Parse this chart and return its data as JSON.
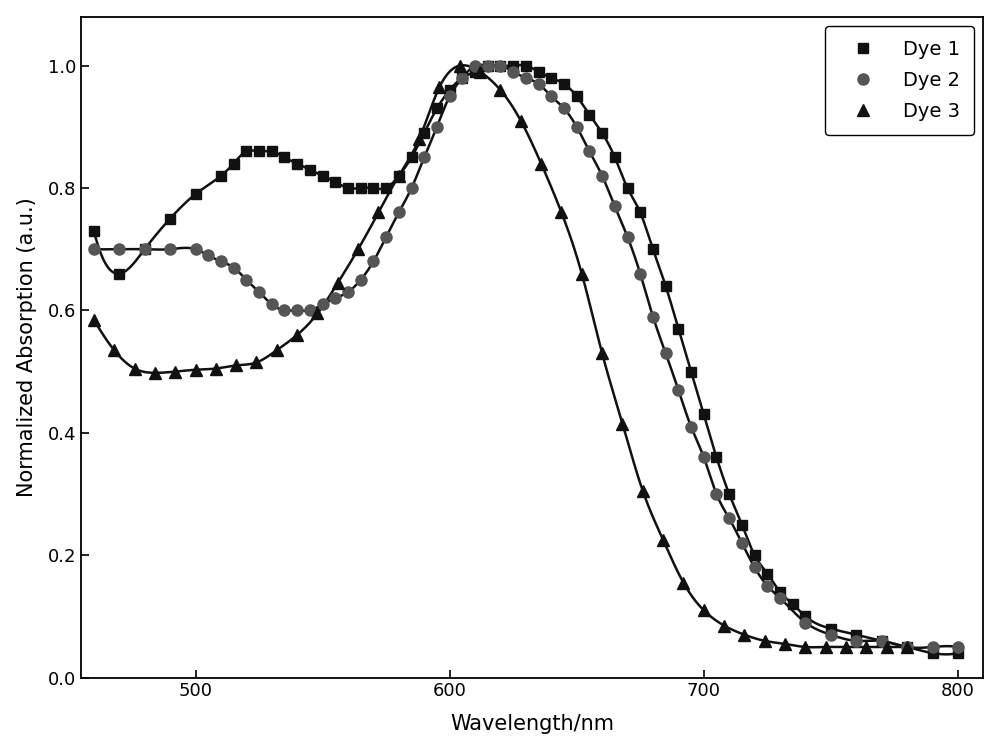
{
  "dye1_x": [
    460,
    470,
    480,
    490,
    500,
    510,
    515,
    520,
    525,
    530,
    535,
    540,
    545,
    550,
    555,
    560,
    565,
    570,
    575,
    580,
    585,
    590,
    595,
    600,
    605,
    610,
    615,
    620,
    625,
    630,
    635,
    640,
    645,
    650,
    655,
    660,
    665,
    670,
    675,
    680,
    685,
    690,
    695,
    700,
    705,
    710,
    715,
    720,
    725,
    730,
    735,
    740,
    750,
    760,
    770,
    780,
    790,
    800
  ],
  "dye1_y": [
    0.73,
    0.66,
    0.7,
    0.75,
    0.79,
    0.82,
    0.84,
    0.86,
    0.86,
    0.86,
    0.85,
    0.84,
    0.83,
    0.82,
    0.81,
    0.8,
    0.8,
    0.8,
    0.8,
    0.82,
    0.85,
    0.89,
    0.93,
    0.96,
    0.98,
    0.99,
    1.0,
    1.0,
    1.0,
    1.0,
    0.99,
    0.98,
    0.97,
    0.95,
    0.92,
    0.89,
    0.85,
    0.8,
    0.76,
    0.7,
    0.64,
    0.57,
    0.5,
    0.43,
    0.36,
    0.3,
    0.25,
    0.2,
    0.17,
    0.14,
    0.12,
    0.1,
    0.08,
    0.07,
    0.06,
    0.05,
    0.04,
    0.04
  ],
  "dye2_x": [
    460,
    470,
    480,
    490,
    500,
    505,
    510,
    515,
    520,
    525,
    530,
    535,
    540,
    545,
    550,
    555,
    560,
    565,
    570,
    575,
    580,
    585,
    590,
    595,
    600,
    605,
    610,
    615,
    620,
    625,
    630,
    635,
    640,
    645,
    650,
    655,
    660,
    665,
    670,
    675,
    680,
    685,
    690,
    695,
    700,
    705,
    710,
    715,
    720,
    725,
    730,
    740,
    750,
    760,
    770,
    780,
    790,
    800
  ],
  "dye2_y": [
    0.7,
    0.7,
    0.7,
    0.7,
    0.7,
    0.69,
    0.68,
    0.67,
    0.65,
    0.63,
    0.61,
    0.6,
    0.6,
    0.6,
    0.61,
    0.62,
    0.63,
    0.65,
    0.68,
    0.72,
    0.76,
    0.8,
    0.85,
    0.9,
    0.95,
    0.98,
    1.0,
    1.0,
    1.0,
    0.99,
    0.98,
    0.97,
    0.95,
    0.93,
    0.9,
    0.86,
    0.82,
    0.77,
    0.72,
    0.66,
    0.59,
    0.53,
    0.47,
    0.41,
    0.36,
    0.3,
    0.26,
    0.22,
    0.18,
    0.15,
    0.13,
    0.09,
    0.07,
    0.06,
    0.06,
    0.05,
    0.05,
    0.05
  ],
  "dye3_x": [
    460,
    468,
    476,
    484,
    492,
    500,
    508,
    516,
    524,
    532,
    540,
    548,
    556,
    564,
    572,
    580,
    588,
    596,
    604,
    612,
    620,
    628,
    636,
    644,
    652,
    660,
    668,
    676,
    684,
    692,
    700,
    708,
    716,
    724,
    732,
    740,
    748,
    756,
    764,
    772,
    780
  ],
  "dye3_y": [
    0.585,
    0.535,
    0.505,
    0.498,
    0.5,
    0.503,
    0.505,
    0.51,
    0.515,
    0.535,
    0.56,
    0.595,
    0.645,
    0.7,
    0.76,
    0.82,
    0.88,
    0.965,
    1.0,
    0.99,
    0.96,
    0.91,
    0.84,
    0.76,
    0.66,
    0.53,
    0.415,
    0.305,
    0.225,
    0.155,
    0.11,
    0.085,
    0.07,
    0.06,
    0.055,
    0.05,
    0.05,
    0.05,
    0.05,
    0.05,
    0.05
  ],
  "xlabel": "Wavelength/nm",
  "ylabel": "Normalized Absorption (a.u.)",
  "xlim": [
    455,
    810
  ],
  "ylim": [
    0.0,
    1.08
  ],
  "xticks": [
    500,
    600,
    700,
    800
  ],
  "yticks": [
    0.0,
    0.2,
    0.4,
    0.6,
    0.8,
    1.0
  ],
  "legend_labels": [
    "Dye 1",
    "Dye 2",
    "Dye 3"
  ],
  "line_color": "#111111",
  "marker_color_dye1": "#111111",
  "marker_color_dye2": "#555555",
  "marker_color_dye3": "#111111",
  "marker_styles": [
    "s",
    "o",
    "^"
  ],
  "marker_size_dye1": 7,
  "marker_size_dye2": 8,
  "marker_size_dye3": 8,
  "linewidth": 1.8,
  "legend_loc": "upper right",
  "legend_fontsize": 14,
  "axis_fontsize": 15,
  "tick_fontsize": 13,
  "background_color": "#ffffff"
}
